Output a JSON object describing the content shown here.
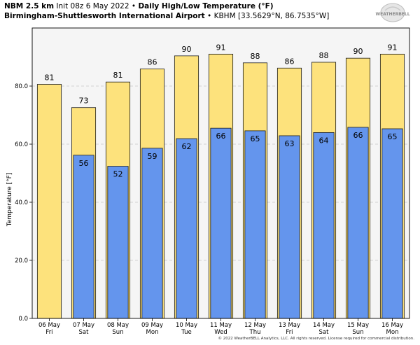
{
  "header": {
    "model": "NBM 2.5 km",
    "init": "Init 08z 6 May 2022",
    "sep": "•",
    "product": "Daily High/Low Temperature (°F)",
    "station": "Birmingham-Shuttlesworth International Airport",
    "sep2": "•",
    "station_info": "KBHM [33.5629°N, 86.7535°W]"
  },
  "logo": {
    "text": "WEATHERBELL",
    "icon": "weatherbell-logo-icon"
  },
  "footer": "© 2022 WeatherBELL Analytics, LLC. All rights reserved. License required for commercial distribution.",
  "colors": {
    "high": "#fde27c",
    "low": "#6495ed",
    "plot_bg": "#f5f5f5",
    "grid": "#c8c8c8"
  },
  "chart_data": {
    "type": "bar",
    "ylabel": "Temperature [°F]",
    "ylim": [
      0,
      100
    ],
    "yticks": [
      0,
      20,
      40,
      60,
      80
    ],
    "ytick_labels": [
      "0.0",
      "20.0",
      "40.0",
      "60.0",
      "80.0"
    ],
    "grid": true,
    "categories": [
      {
        "date": "06 May",
        "day": "Fri"
      },
      {
        "date": "07 May",
        "day": "Sat"
      },
      {
        "date": "08 May",
        "day": "Sun"
      },
      {
        "date": "09 May",
        "day": "Mon"
      },
      {
        "date": "10 May",
        "day": "Tue"
      },
      {
        "date": "11 May",
        "day": "Wed"
      },
      {
        "date": "12 May",
        "day": "Thu"
      },
      {
        "date": "13 May",
        "day": "Fri"
      },
      {
        "date": "14 May",
        "day": "Sat"
      },
      {
        "date": "15 May",
        "day": "Sun"
      },
      {
        "date": "16 May",
        "day": "Mon"
      }
    ],
    "series": [
      {
        "values": [
          80.6,
          72.6,
          81.4,
          85.9,
          90.4,
          91.0,
          88.0,
          86.2,
          88.2,
          89.6,
          91.0
        ],
        "labels": [
          "81",
          "73",
          "81",
          "86",
          "90",
          "91",
          "88",
          "86",
          "88",
          "90",
          "91"
        ]
      },
      {
        "values": [
          null,
          56.2,
          52.4,
          58.6,
          61.9,
          65.5,
          64.6,
          62.9,
          64.0,
          65.8,
          65.3
        ],
        "labels": [
          "",
          "56",
          "52",
          "59",
          "62",
          "66",
          "65",
          "63",
          "64",
          "66",
          "65"
        ]
      }
    ]
  }
}
